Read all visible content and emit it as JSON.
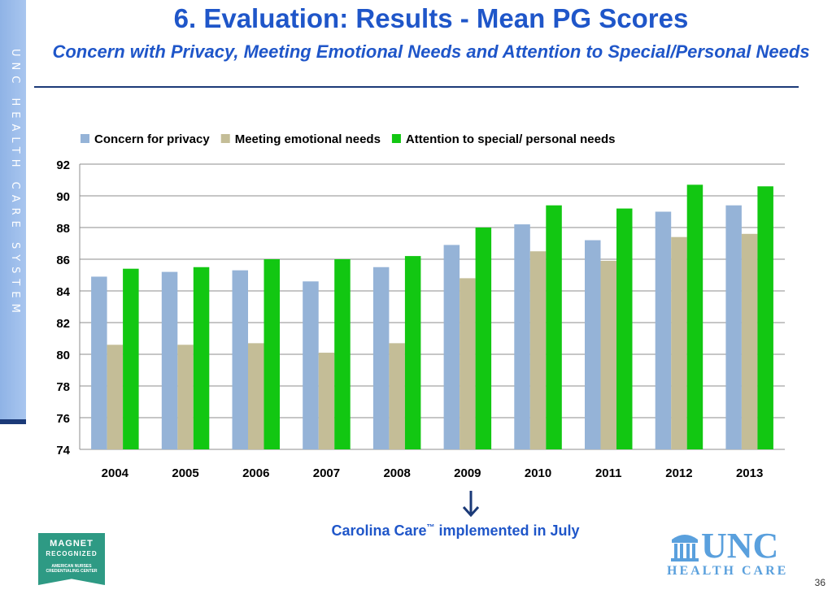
{
  "sidebar": {
    "text": "UNC HEALTH CARE SYSTEM"
  },
  "header": {
    "title": "6. Evaluation: Results - Mean PG Scores",
    "subtitle": "Concern with Privacy, Meeting Emotional Needs and Attention to Special/Personal Needs"
  },
  "chart_data": {
    "type": "bar",
    "categories": [
      "2004",
      "2005",
      "2006",
      "2007",
      "2008",
      "2009",
      "2010",
      "2011",
      "2012",
      "2013"
    ],
    "series": [
      {
        "name": "Concern for privacy",
        "color": "#95b3d7",
        "values": [
          84.9,
          85.2,
          85.3,
          84.6,
          85.5,
          86.9,
          88.2,
          87.2,
          89.0,
          89.4
        ]
      },
      {
        "name": "Meeting emotional needs",
        "color": "#c4bd97",
        "values": [
          80.6,
          80.6,
          80.7,
          80.1,
          80.7,
          84.8,
          86.5,
          85.9,
          87.4,
          87.6
        ]
      },
      {
        "name": "Attention to special/ personal needs",
        "color": "#12c712",
        "values": [
          85.4,
          85.5,
          86.0,
          86.0,
          86.2,
          88.0,
          89.4,
          89.2,
          90.7,
          90.6
        ]
      }
    ],
    "ylim": [
      74,
      92
    ],
    "yticks": [
      74,
      76,
      78,
      80,
      82,
      84,
      86,
      88,
      90,
      92
    ],
    "grid": true,
    "legend_position": "top"
  },
  "annotation": {
    "text": "Carolina Care",
    "trademark": "™",
    "suffix": " implemented in July"
  },
  "logos": {
    "magnet": {
      "line1": "MAGNET",
      "line2": "RECOGNIZED",
      "line3": "AMERICAN NURSES CREDENTIALING CENTER"
    },
    "unc": {
      "main": "UNC",
      "sub": "HEALTH CARE"
    }
  },
  "page_number": "36"
}
